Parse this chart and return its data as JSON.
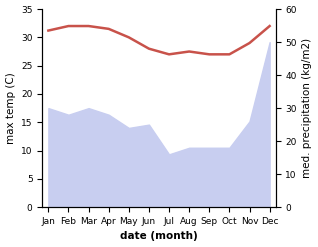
{
  "months": [
    "Jan",
    "Feb",
    "Mar",
    "Apr",
    "May",
    "Jun",
    "Jul",
    "Aug",
    "Sep",
    "Oct",
    "Nov",
    "Dec"
  ],
  "max_temp": [
    31.2,
    32.0,
    32.0,
    31.5,
    30.0,
    28.0,
    27.0,
    27.5,
    27.0,
    27.0,
    29.0,
    32.0
  ],
  "precipitation": [
    30.0,
    28.0,
    30.0,
    28.0,
    24.0,
    25.0,
    16.0,
    18.0,
    18.0,
    18.0,
    26.0,
    50.0
  ],
  "temp_ylim": [
    0,
    35
  ],
  "precip_ylim": [
    0,
    60
  ],
  "temp_color": "#c8524a",
  "precip_fill_color": "#c8cef0",
  "xlabel": "date (month)",
  "ylabel_left": "max temp (C)",
  "ylabel_right": "med. precipitation (kg/m2)",
  "temp_yticks": [
    0,
    5,
    10,
    15,
    20,
    25,
    30,
    35
  ],
  "precip_yticks": [
    0,
    10,
    20,
    30,
    40,
    50,
    60
  ],
  "fig_width": 3.18,
  "fig_height": 2.47,
  "dpi": 100
}
